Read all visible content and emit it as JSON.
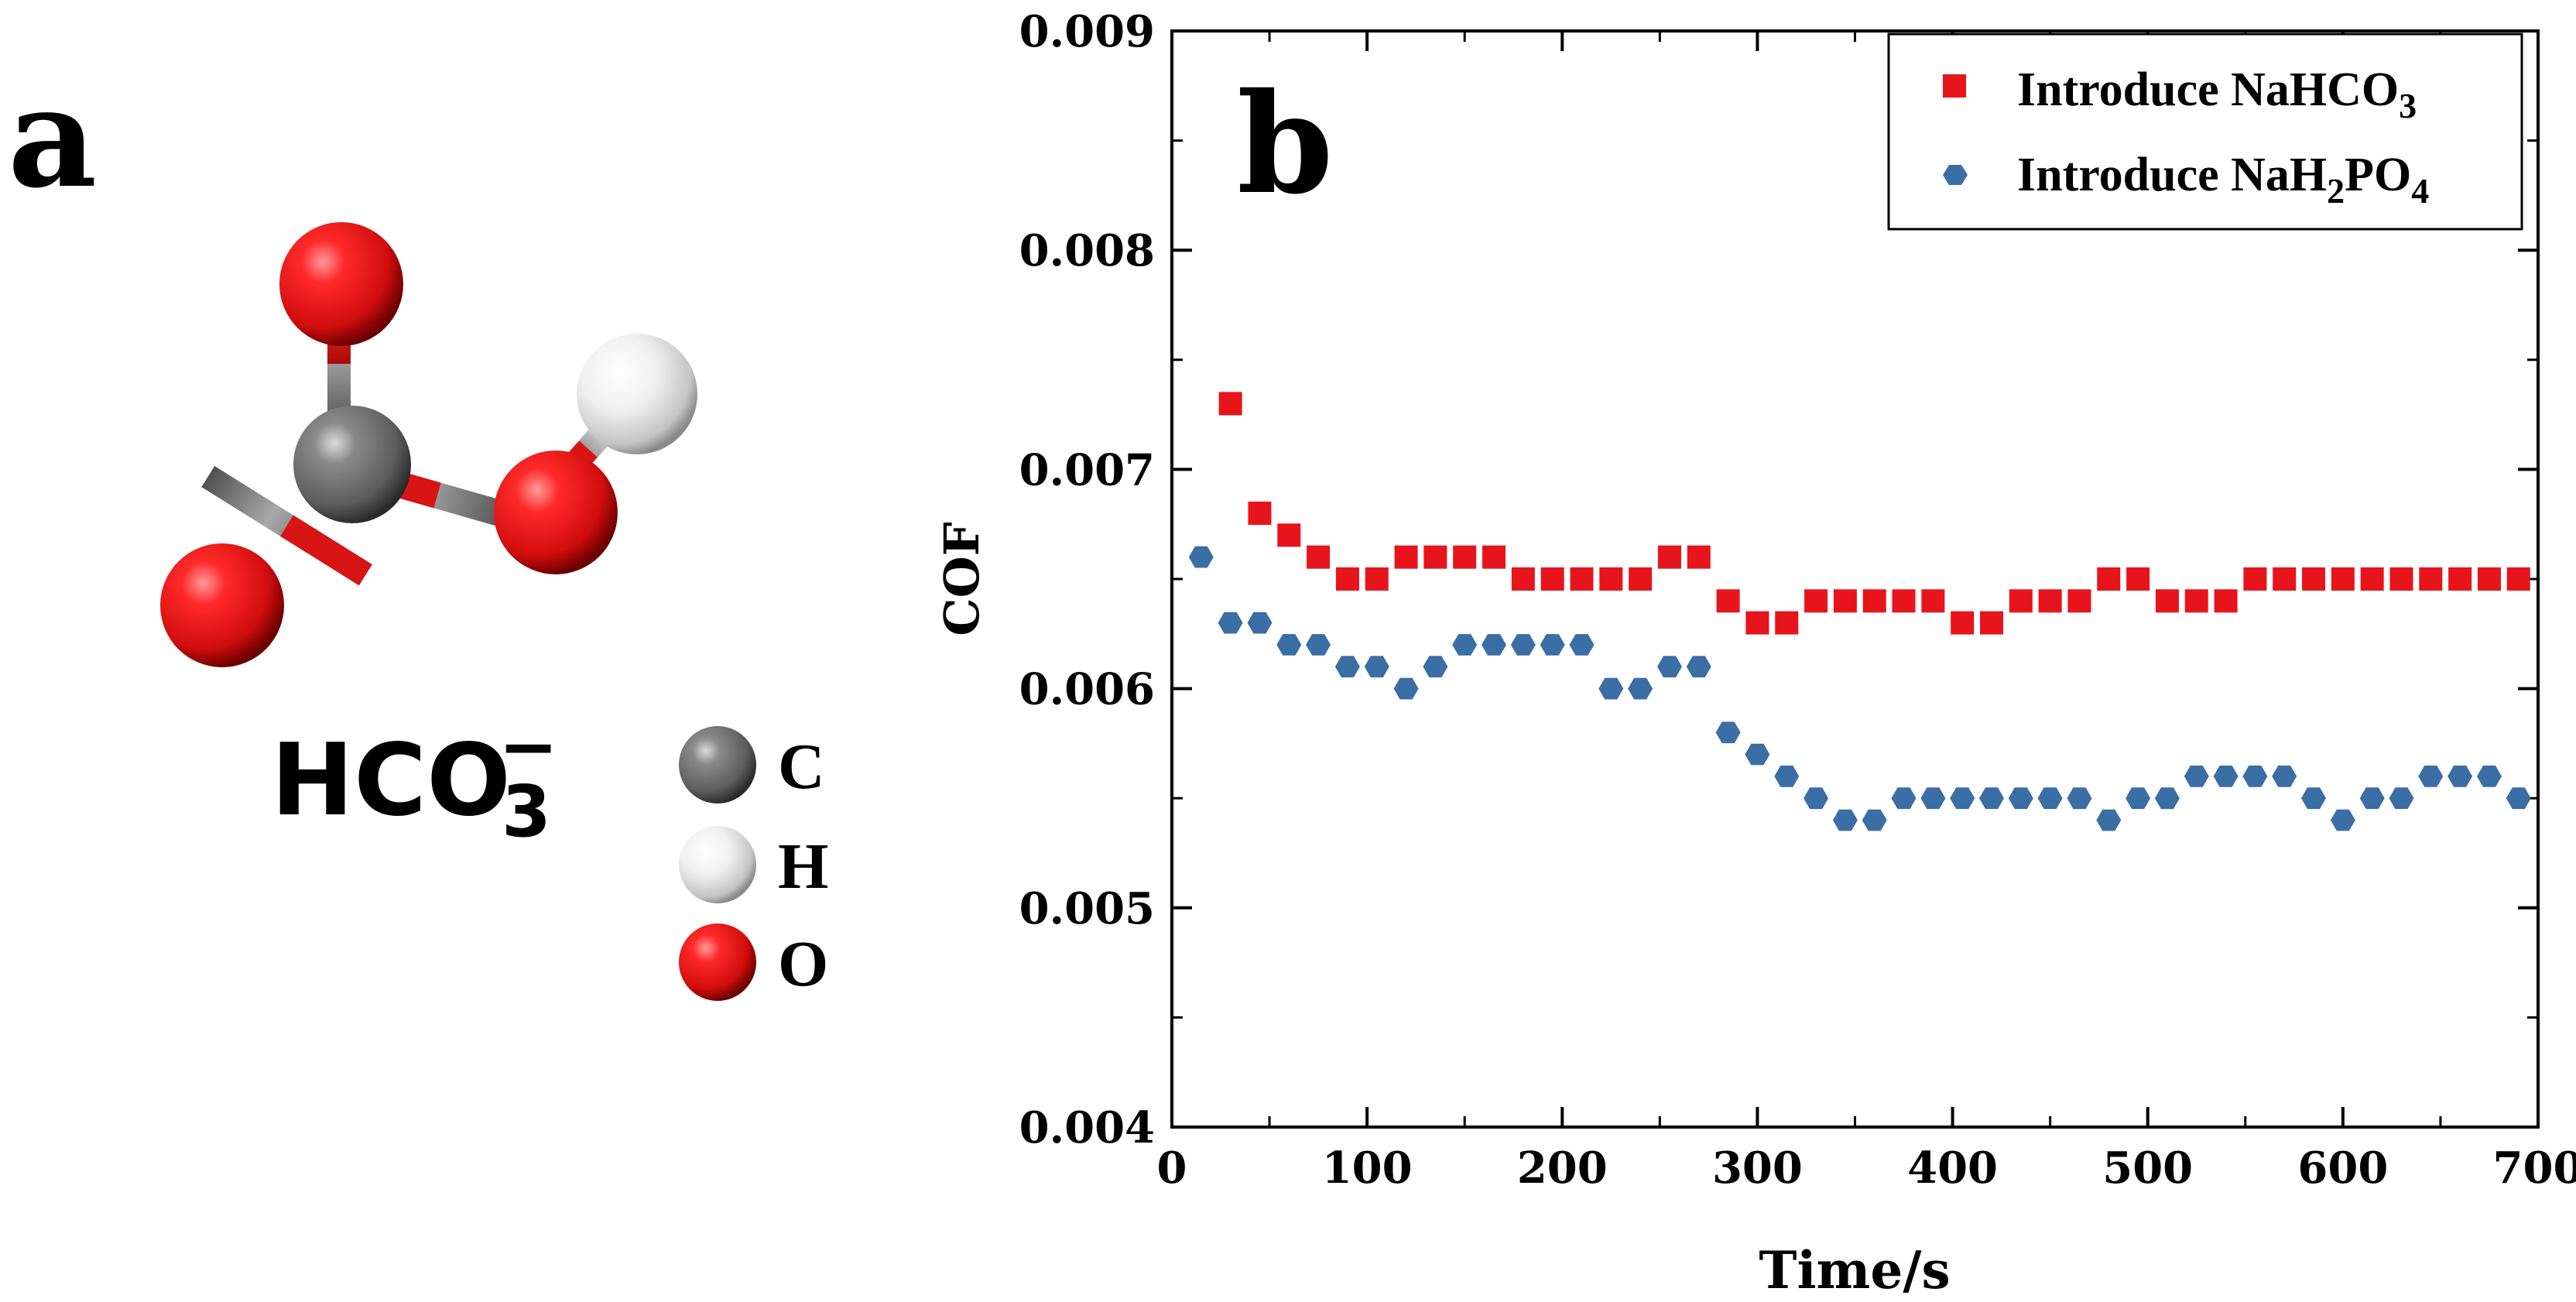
{
  "panel_a": {
    "label": "a",
    "formula": {
      "base": "HCO",
      "subscript": "3",
      "superscript": "−"
    },
    "legend": [
      {
        "symbol": "C",
        "color": "#6e6e6e"
      },
      {
        "symbol": "H",
        "color": "#e6e6e6"
      },
      {
        "symbol": "O",
        "color": "#e01515"
      }
    ]
  },
  "panel_b": {
    "label": "b"
  },
  "chart_data": {
    "type": "scatter",
    "title": "",
    "xlabel": "Time/s",
    "ylabel": "COF",
    "xlim": [
      0,
      700
    ],
    "ylim": [
      0.004,
      0.009
    ],
    "x_ticks": [
      0,
      100,
      200,
      300,
      400,
      500,
      600,
      700
    ],
    "x_tick_labels": [
      "0",
      "100",
      "200",
      "300",
      "400",
      "500",
      "600",
      "700"
    ],
    "y_ticks": [
      0.004,
      0.005,
      0.006,
      0.007,
      0.008,
      0.009
    ],
    "y_tick_labels": [
      "0.004",
      "0.005",
      "0.006",
      "0.007",
      "0.008",
      "0.009"
    ],
    "legend_position": "top-right",
    "grid": false,
    "series": [
      {
        "name": "Introduce NaHCO3",
        "legend_base": "Introduce NaHCO",
        "legend_sub": "3",
        "legend_rest": "",
        "marker": "square",
        "color": "#e8141c",
        "x": [
          30,
          45,
          60,
          75,
          90,
          105,
          120,
          135,
          150,
          165,
          180,
          195,
          210,
          225,
          240,
          255,
          270,
          285,
          300,
          315,
          330,
          345,
          360,
          375,
          390,
          405,
          420,
          435,
          450,
          465,
          480,
          495,
          510,
          525,
          540,
          555,
          570,
          585,
          600,
          615,
          630,
          645,
          660,
          675,
          690
        ],
        "y": [
          0.0073,
          0.0068,
          0.0067,
          0.0066,
          0.0065,
          0.0065,
          0.0066,
          0.0066,
          0.0066,
          0.0066,
          0.0065,
          0.0065,
          0.0065,
          0.0065,
          0.0065,
          0.0066,
          0.0066,
          0.0064,
          0.0063,
          0.0063,
          0.0064,
          0.0064,
          0.0064,
          0.0064,
          0.0064,
          0.0063,
          0.0063,
          0.0064,
          0.0064,
          0.0064,
          0.0065,
          0.0065,
          0.0064,
          0.0064,
          0.0064,
          0.0065,
          0.0065,
          0.0065,
          0.0065,
          0.0065,
          0.0065,
          0.0065,
          0.0065,
          0.0065,
          0.0065
        ]
      },
      {
        "name": "Introduce NaH2PO4",
        "legend_base": "Introduce NaH",
        "legend_sub": "2",
        "legend_rest": "PO",
        "legend_sub2": "4",
        "marker": "hexagon",
        "color": "#3a6ea5",
        "x": [
          15,
          30,
          45,
          60,
          75,
          90,
          105,
          120,
          135,
          150,
          165,
          180,
          195,
          210,
          225,
          240,
          255,
          270,
          285,
          300,
          315,
          330,
          345,
          360,
          375,
          390,
          405,
          420,
          435,
          450,
          465,
          480,
          495,
          510,
          525,
          540,
          555,
          570,
          585,
          600,
          615,
          630,
          645,
          660,
          675,
          690
        ],
        "y": [
          0.0066,
          0.0063,
          0.0063,
          0.0062,
          0.0062,
          0.0061,
          0.0061,
          0.006,
          0.0061,
          0.0062,
          0.0062,
          0.0062,
          0.0062,
          0.0062,
          0.006,
          0.006,
          0.0061,
          0.0061,
          0.0058,
          0.0057,
          0.0056,
          0.0055,
          0.0054,
          0.0054,
          0.0055,
          0.0055,
          0.0055,
          0.0055,
          0.0055,
          0.0055,
          0.0055,
          0.0054,
          0.0055,
          0.0055,
          0.0056,
          0.0056,
          0.0056,
          0.0056,
          0.0055,
          0.0054,
          0.0055,
          0.0055,
          0.0056,
          0.0056,
          0.0056,
          0.0055
        ]
      }
    ]
  }
}
